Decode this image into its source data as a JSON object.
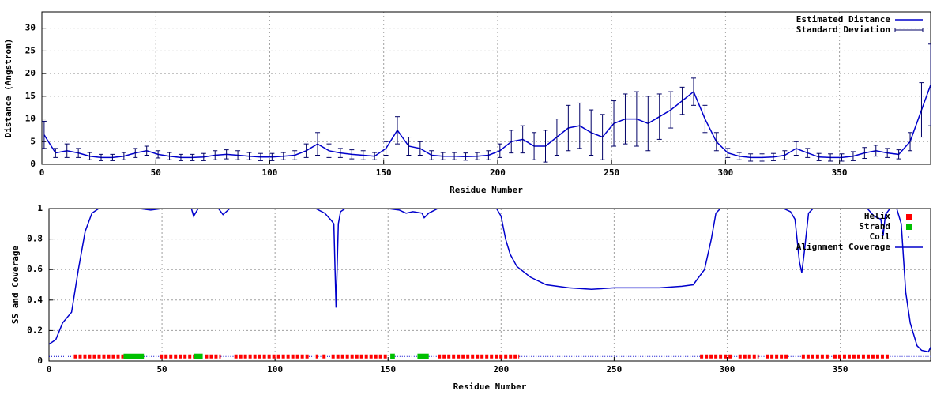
{
  "chart_data": [
    {
      "type": "errorbar",
      "xlabel": "Residue Number",
      "ylabel": "Distance (Angstrom)",
      "xlim": [
        0,
        390
      ],
      "ylim": [
        0,
        33.6
      ],
      "xticks": [
        0,
        50,
        100,
        150,
        200,
        250,
        300,
        350
      ],
      "yticks": [
        0,
        5,
        10,
        15,
        20,
        25,
        30
      ],
      "grid": true,
      "legend": "top-right",
      "series": [
        {
          "name": "Estimated Distance",
          "color": "#0000cc",
          "x": [
            1,
            6,
            11,
            16,
            21,
            26,
            31,
            36,
            41,
            46,
            51,
            56,
            61,
            66,
            71,
            76,
            81,
            86,
            91,
            96,
            101,
            106,
            111,
            116,
            121,
            126,
            131,
            136,
            141,
            146,
            151,
            156,
            161,
            166,
            171,
            176,
            181,
            186,
            191,
            196,
            201,
            206,
            211,
            216,
            221,
            226,
            231,
            236,
            241,
            246,
            251,
            256,
            261,
            266,
            271,
            276,
            281,
            286,
            291,
            296,
            301,
            306,
            311,
            316,
            321,
            326,
            331,
            336,
            341,
            346,
            351,
            356,
            361,
            366,
            371,
            376,
            381,
            386,
            390
          ],
          "values": [
            6.5,
            2.5,
            3,
            2.5,
            1.8,
            1.5,
            1.5,
            1.8,
            2.5,
            3,
            2.2,
            1.8,
            1.5,
            1.5,
            1.6,
            2,
            2.2,
            2,
            1.8,
            1.6,
            1.6,
            1.8,
            2,
            3,
            4.5,
            3,
            2.5,
            2.2,
            2,
            1.8,
            3.5,
            7.5,
            4,
            3.5,
            2,
            1.8,
            1.8,
            1.7,
            1.8,
            2,
            3,
            5,
            5.5,
            4,
            4,
            6,
            8,
            8.5,
            7,
            6,
            9,
            10,
            10,
            9,
            10.5,
            12,
            14,
            16,
            10,
            5,
            2.5,
            1.8,
            1.5,
            1.5,
            1.6,
            2,
            3.5,
            2.5,
            1.6,
            1.5,
            1.5,
            1.8,
            2.5,
            3,
            2.5,
            2.2,
            5,
            12,
            17.5
          ]
        },
        {
          "name": "Standard Deviation",
          "color": "#000066",
          "of": 0,
          "errors": [
            3,
            1,
            1.5,
            1,
            0.8,
            0.7,
            0.7,
            0.8,
            1,
            1,
            0.8,
            0.8,
            0.7,
            0.7,
            0.8,
            1,
            1,
            1,
            0.8,
            0.8,
            0.8,
            0.8,
            1,
            1.5,
            2.5,
            1.5,
            1,
            1,
            1,
            0.8,
            1.5,
            3,
            2,
            1.5,
            1,
            0.8,
            0.8,
            0.8,
            0.8,
            1,
            1.5,
            2.5,
            3,
            3,
            3.5,
            4,
            5,
            5,
            5,
            5,
            5,
            5.5,
            6,
            6,
            5,
            4,
            3,
            3,
            3,
            2,
            1,
            0.8,
            0.8,
            0.8,
            0.8,
            1,
            1.5,
            1,
            0.8,
            0.8,
            0.8,
            1,
            1.2,
            1.2,
            1,
            1,
            2,
            6,
            9
          ]
        }
      ]
    },
    {
      "type": "line",
      "xlabel": "Residue Number",
      "ylabel": "SS and Coverage",
      "xlim": [
        0,
        390
      ],
      "ylim": [
        0,
        1
      ],
      "xticks": [
        0,
        50,
        100,
        150,
        200,
        250,
        300,
        350
      ],
      "yticks": [
        0,
        0.2,
        0.4,
        0.6,
        0.8,
        1
      ],
      "grid": true,
      "legend": "top-right",
      "level": 0.03,
      "series": [
        {
          "name": "Helix",
          "color": "#ff0000",
          "ranges": [
            [
              11,
              33
            ],
            [
              49,
              64
            ],
            [
              69,
              76
            ],
            [
              82,
              115
            ],
            [
              118,
              119
            ],
            [
              121,
              123
            ],
            [
              125,
              150
            ],
            [
              172,
              208
            ],
            [
              288,
              302
            ],
            [
              305,
              314
            ],
            [
              317,
              327
            ],
            [
              333,
              345
            ],
            [
              347,
              372
            ]
          ]
        },
        {
          "name": "Strand",
          "color": "#00c000",
          "ranges": [
            [
              33,
              42
            ],
            [
              64,
              68
            ],
            [
              151,
              153
            ],
            [
              163,
              168
            ]
          ]
        },
        {
          "name": "Coil",
          "color": "#0000cc",
          "ranges": [
            [
              0,
              11
            ],
            [
              42,
              49
            ],
            [
              76,
              82
            ],
            [
              115,
              118
            ],
            [
              119,
              121
            ],
            [
              123,
              125
            ],
            [
              153,
              163
            ],
            [
              168,
              172
            ],
            [
              208,
              288
            ],
            [
              302,
              305
            ],
            [
              314,
              317
            ],
            [
              327,
              333
            ],
            [
              345,
              347
            ],
            [
              372,
              390
            ]
          ]
        },
        {
          "name": "Alignment Coverage",
          "color": "#0000cc",
          "x": [
            0,
            3,
            6,
            10,
            13,
            16,
            19,
            22,
            40,
            45,
            50,
            63,
            64,
            66,
            75,
            77,
            80,
            118,
            122,
            125,
            126,
            127,
            128,
            129,
            131,
            150,
            155,
            158,
            161,
            165,
            166,
            168,
            172,
            198,
            200,
            202,
            204,
            207,
            213,
            220,
            230,
            240,
            250,
            260,
            270,
            280,
            285,
            290,
            293,
            295,
            297,
            325,
            328,
            330,
            332,
            333,
            334,
            336,
            338,
            362,
            365,
            368,
            369,
            370,
            372,
            375,
            377,
            379,
            381,
            384,
            386,
            389,
            390
          ],
          "values": [
            0.11,
            0.14,
            0.25,
            0.32,
            0.6,
            0.85,
            0.97,
            1,
            1,
            0.99,
            1,
            1,
            0.95,
            1,
            1,
            0.96,
            1,
            1,
            0.97,
            0.92,
            0.9,
            0.35,
            0.9,
            0.98,
            1,
            1,
            0.99,
            0.97,
            0.98,
            0.97,
            0.94,
            0.97,
            1,
            1,
            0.95,
            0.8,
            0.7,
            0.62,
            0.55,
            0.5,
            0.48,
            0.47,
            0.48,
            0.48,
            0.48,
            0.49,
            0.5,
            0.6,
            0.8,
            0.97,
            1,
            1,
            0.98,
            0.93,
            0.65,
            0.58,
            0.7,
            0.97,
            1,
            1,
            0.95,
            0.93,
            0.82,
            0.96,
            1,
            1,
            0.9,
            0.45,
            0.25,
            0.1,
            0.07,
            0.06,
            0.09
          ]
        }
      ]
    }
  ]
}
